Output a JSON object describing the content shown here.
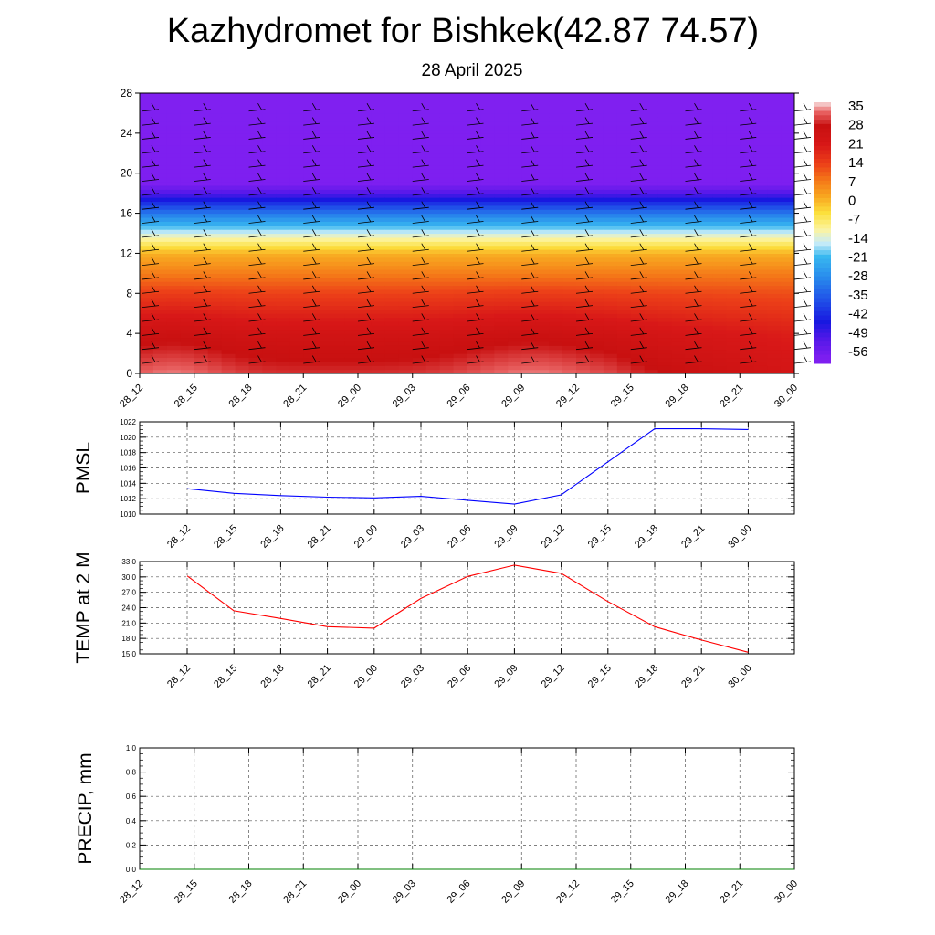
{
  "page": {
    "title": "Kazhydromet for Bishkek(42.87 74.57)",
    "subtitle": "28 April 2025"
  },
  "chart_data": [
    {
      "id": "cross-section",
      "type": "heatmap",
      "title": "",
      "xlabel": "",
      "ylabel": "",
      "x_ticks": [
        "28_12",
        "28_15",
        "28_18",
        "28_21",
        "29_00",
        "29_03",
        "29_06",
        "29_09",
        "29_12",
        "29_15",
        "29_18",
        "29_21",
        "30_00"
      ],
      "ylim": [
        0,
        28
      ],
      "y_ticks": [
        0,
        4,
        8,
        12,
        16,
        20,
        24,
        28
      ],
      "temperature_profile_by_height": [
        {
          "y": 0,
          "t": 30
        },
        {
          "y": 4,
          "t": 24
        },
        {
          "y": 8,
          "t": 14
        },
        {
          "y": 12,
          "t": 1
        },
        {
          "y": 14,
          "t": -14
        },
        {
          "y": 16,
          "t": -30
        },
        {
          "y": 18,
          "t": -50
        },
        {
          "y": 19,
          "t": -58
        },
        {
          "y": 28,
          "t": -60
        }
      ],
      "colorbar": {
        "labels": [
          "35",
          "28",
          "21",
          "14",
          "7",
          "0",
          "-7",
          "-14",
          "-21",
          "-28",
          "-35",
          "-42",
          "-49",
          "-56"
        ],
        "colors": [
          "#f4c4c4",
          "#d01818",
          "#e83020",
          "#f46018",
          "#f89820",
          "#fcd838",
          "#fcf4a0",
          "#c8ecf8",
          "#38b8f0",
          "#2888ec",
          "#2050e8",
          "#1818e0",
          "#5018e8",
          "#8020f0"
        ]
      },
      "wind_barbs": "shown"
    },
    {
      "id": "pmsl",
      "type": "line",
      "ylabel": "PMSL",
      "x_ticks": [
        "28_12",
        "28_15",
        "28_18",
        "28_21",
        "29_00",
        "29_03",
        "29_06",
        "29_09",
        "29_12",
        "29_15",
        "29_18",
        "29_21",
        "30_00"
      ],
      "ylim": [
        1010,
        1022
      ],
      "y_ticks": [
        "1010",
        "1012",
        "1014",
        "1016",
        "1018",
        "1020",
        "1022"
      ],
      "grid": true,
      "series": [
        {
          "color": "#0000ff",
          "values": [
            1013.3,
            1012.7,
            1012.4,
            1012.2,
            1012.1,
            1012.3,
            1011.8,
            1011.3,
            1012.5,
            1016.8,
            1021.1,
            1021.1,
            1021.0
          ]
        }
      ]
    },
    {
      "id": "temp2m",
      "type": "line",
      "ylabel": "TEMP at 2 M",
      "x_ticks": [
        "28_12",
        "28_15",
        "28_18",
        "28_21",
        "29_00",
        "29_03",
        "29_06",
        "29_09",
        "29_12",
        "29_15",
        "29_18",
        "29_21",
        "30_00"
      ],
      "ylim": [
        15,
        33
      ],
      "y_ticks": [
        "15.0",
        "18.0",
        "21.0",
        "24.0",
        "27.0",
        "30.0",
        "33.0"
      ],
      "grid": true,
      "series": [
        {
          "color": "#ff0000",
          "values": [
            30.2,
            23.4,
            21.9,
            20.3,
            20.0,
            25.8,
            30.1,
            32.3,
            30.7,
            25.2,
            20.3,
            17.7,
            15.3
          ]
        }
      ]
    },
    {
      "id": "precip",
      "type": "line",
      "ylabel": "PRECIP, mm",
      "x_ticks": [
        "28_12",
        "28_15",
        "28_18",
        "28_21",
        "29_00",
        "29_03",
        "29_06",
        "29_09",
        "29_12",
        "29_15",
        "29_18",
        "29_21",
        "30_00"
      ],
      "ylim": [
        0,
        1
      ],
      "y_ticks": [
        "0.0",
        "0.2",
        "0.4",
        "0.6",
        "0.8",
        "1.0"
      ],
      "grid": true,
      "series": [
        {
          "color": "#008000",
          "values": [
            0,
            0,
            0,
            0,
            0,
            0,
            0,
            0,
            0,
            0,
            0,
            0
          ]
        }
      ]
    }
  ]
}
